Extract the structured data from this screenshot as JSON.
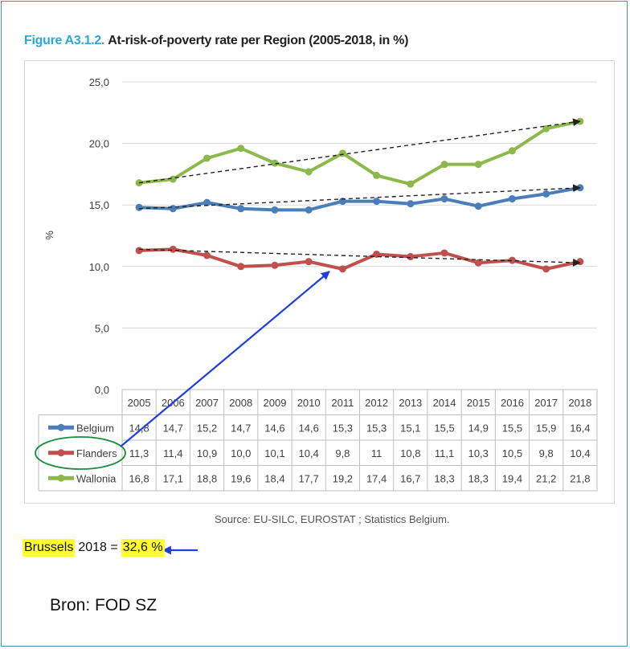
{
  "figure": {
    "label": "Figure A3.1.2.",
    "title": "At-risk-of-poverty rate per Region (2005-2018, in %)"
  },
  "chart_data": {
    "type": "line",
    "title": "At-risk-of-poverty rate per Region (2005-2018, in %)",
    "ylabel": "%",
    "xlabel": "",
    "ylim": [
      0,
      25
    ],
    "yticks": [
      "0,0",
      "5,0",
      "10,0",
      "15,0",
      "20,0",
      "25,0"
    ],
    "grid": true,
    "categories": [
      "2005",
      "2006",
      "2007",
      "2008",
      "2009",
      "2010",
      "2011",
      "2012",
      "2013",
      "2014",
      "2015",
      "2016",
      "2017",
      "2018"
    ],
    "series": [
      {
        "name": "Belgium",
        "color": "#4a7ebb",
        "values": [
          14.8,
          14.7,
          15.2,
          14.7,
          14.6,
          14.6,
          15.3,
          15.3,
          15.1,
          15.5,
          14.9,
          15.5,
          15.9,
          16.4
        ],
        "labels": [
          "14,8",
          "14,7",
          "15,2",
          "14,7",
          "14,6",
          "14,6",
          "15,3",
          "15,3",
          "15,1",
          "15,5",
          "14,9",
          "15,5",
          "15,9",
          "16,4"
        ]
      },
      {
        "name": "Flanders",
        "color": "#c0504d",
        "values": [
          11.3,
          11.4,
          10.9,
          10.0,
          10.1,
          10.4,
          9.8,
          11.0,
          10.8,
          11.1,
          10.3,
          10.5,
          9.8,
          10.4
        ],
        "labels": [
          "11,3",
          "11,4",
          "10,9",
          "10,0",
          "10,1",
          "10,4",
          "9,8",
          "11",
          "10,8",
          "11,1",
          "10,3",
          "10,5",
          "9,8",
          "10,4"
        ]
      },
      {
        "name": "Wallonia",
        "color": "#8db84a",
        "values": [
          16.8,
          17.1,
          18.8,
          19.6,
          18.4,
          17.7,
          19.2,
          17.4,
          16.7,
          18.3,
          18.3,
          19.4,
          21.2,
          21.8
        ],
        "labels": [
          "16,8",
          "17,1",
          "18,8",
          "19,6",
          "18,4",
          "17,7",
          "19,2",
          "17,4",
          "16,7",
          "18,3",
          "18,3",
          "19,4",
          "21,2",
          "21,8"
        ]
      }
    ],
    "trendlines": [
      {
        "series": "Wallonia",
        "from": 16.8,
        "to": 21.8
      },
      {
        "series": "Belgium",
        "from": 14.7,
        "to": 16.4
      },
      {
        "series": "Flanders",
        "from": 11.4,
        "to": 10.3
      }
    ]
  },
  "source": "Source: EU-SILC, EUROSTAT ; Statistics Belgium.",
  "brussels": {
    "label": "Brussels",
    "year_eq": "2018 =",
    "value": "32,6 %"
  },
  "credit": "Bron: FOD SZ"
}
